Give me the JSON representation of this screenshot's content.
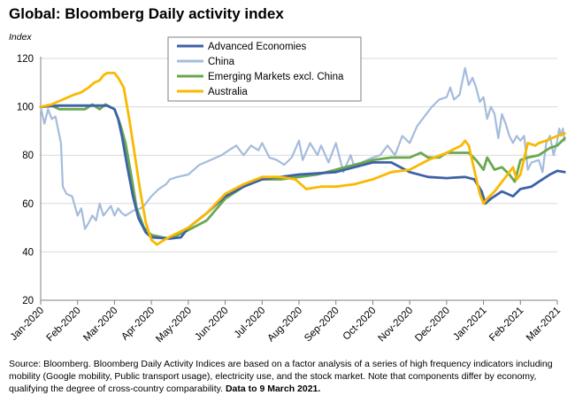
{
  "chart_data": {
    "type": "line",
    "title": "Global: Bloomberg Daily activity index",
    "ylabel": "Index",
    "xlabel": "",
    "ylim": [
      20,
      120
    ],
    "yticks": [
      20,
      40,
      60,
      80,
      100,
      120
    ],
    "grid": "horizontal",
    "legend_position": "top-center",
    "x_tick_labels": [
      "Jan-2020",
      "Feb-2020",
      "Mar-2020",
      "Apr-2020",
      "May-2020",
      "Jun-2020",
      "Jul-2020",
      "Aug-2020",
      "Sep-2020",
      "Oct-2020",
      "Nov-2020",
      "Dec-2020",
      "Jan-2021",
      "Feb-2021",
      "Mar-2021"
    ],
    "x_axis_note": "x values are months since Jan-2020 start (0 = Jan-2020, 14 = Mar-2021)",
    "series": [
      {
        "name": "Advanced Economies",
        "color": "#3c62a8",
        "width": 2.8,
        "points": [
          [
            0,
            100
          ],
          [
            0.5,
            100.5
          ],
          [
            1,
            100.5
          ],
          [
            1.5,
            100.5
          ],
          [
            1.8,
            100.5
          ],
          [
            2.0,
            99
          ],
          [
            2.1,
            95
          ],
          [
            2.2,
            88
          ],
          [
            2.35,
            75
          ],
          [
            2.5,
            63
          ],
          [
            2.65,
            54
          ],
          [
            2.85,
            48
          ],
          [
            3.0,
            46
          ],
          [
            3.5,
            45.5
          ],
          [
            3.8,
            46
          ],
          [
            4.0,
            50
          ],
          [
            4.5,
            56
          ],
          [
            5.0,
            63
          ],
          [
            5.5,
            67
          ],
          [
            6.0,
            70
          ],
          [
            6.5,
            71
          ],
          [
            7.0,
            72
          ],
          [
            7.5,
            72.5
          ],
          [
            8.0,
            73
          ],
          [
            8.5,
            75
          ],
          [
            9.0,
            77
          ],
          [
            9.5,
            77
          ],
          [
            10.0,
            73
          ],
          [
            10.5,
            71
          ],
          [
            11.0,
            70.5
          ],
          [
            11.5,
            71
          ],
          [
            11.75,
            70
          ],
          [
            11.95,
            65
          ],
          [
            12.05,
            60
          ],
          [
            12.2,
            62
          ],
          [
            12.5,
            65
          ],
          [
            12.8,
            63
          ],
          [
            13.0,
            66
          ],
          [
            13.3,
            67
          ],
          [
            13.5,
            69
          ],
          [
            13.8,
            72
          ],
          [
            14.0,
            73.5
          ],
          [
            14.2,
            73
          ]
        ]
      },
      {
        "name": "China",
        "color": "#a4bcdc",
        "width": 2.2,
        "points": [
          [
            0,
            100
          ],
          [
            0.1,
            93
          ],
          [
            0.2,
            99
          ],
          [
            0.3,
            95
          ],
          [
            0.4,
            96
          ],
          [
            0.55,
            85
          ],
          [
            0.6,
            67
          ],
          [
            0.7,
            64
          ],
          [
            0.85,
            63
          ],
          [
            1.0,
            55
          ],
          [
            1.1,
            58
          ],
          [
            1.2,
            49.5
          ],
          [
            1.3,
            52
          ],
          [
            1.4,
            55
          ],
          [
            1.5,
            53
          ],
          [
            1.6,
            60
          ],
          [
            1.7,
            55
          ],
          [
            1.8,
            57
          ],
          [
            1.9,
            59
          ],
          [
            2.0,
            55
          ],
          [
            2.1,
            58
          ],
          [
            2.2,
            56
          ],
          [
            2.3,
            55
          ],
          [
            2.5,
            57
          ],
          [
            2.7,
            58
          ],
          [
            2.8,
            59
          ],
          [
            3.0,
            63
          ],
          [
            3.2,
            66
          ],
          [
            3.4,
            68
          ],
          [
            3.5,
            70
          ],
          [
            3.7,
            71
          ],
          [
            4.0,
            72
          ],
          [
            4.3,
            76
          ],
          [
            4.6,
            78
          ],
          [
            4.9,
            80
          ],
          [
            5.1,
            82
          ],
          [
            5.3,
            84
          ],
          [
            5.5,
            80
          ],
          [
            5.7,
            84
          ],
          [
            5.9,
            82
          ],
          [
            6.0,
            85
          ],
          [
            6.2,
            79
          ],
          [
            6.4,
            78
          ],
          [
            6.6,
            76
          ],
          [
            6.8,
            79
          ],
          [
            7.0,
            86
          ],
          [
            7.1,
            78
          ],
          [
            7.3,
            85
          ],
          [
            7.5,
            80
          ],
          [
            7.6,
            84
          ],
          [
            7.8,
            77
          ],
          [
            8.0,
            85
          ],
          [
            8.2,
            73
          ],
          [
            8.4,
            80
          ],
          [
            8.5,
            75
          ],
          [
            8.7,
            77
          ],
          [
            9.0,
            79
          ],
          [
            9.2,
            80
          ],
          [
            9.4,
            84
          ],
          [
            9.6,
            80
          ],
          [
            9.8,
            88
          ],
          [
            10.0,
            85
          ],
          [
            10.2,
            92
          ],
          [
            10.4,
            96
          ],
          [
            10.6,
            100
          ],
          [
            10.8,
            103
          ],
          [
            11.0,
            104
          ],
          [
            11.1,
            108
          ],
          [
            11.2,
            103
          ],
          [
            11.35,
            105
          ],
          [
            11.5,
            116
          ],
          [
            11.6,
            109
          ],
          [
            11.7,
            112
          ],
          [
            11.8,
            108
          ],
          [
            11.9,
            102
          ],
          [
            12.0,
            104
          ],
          [
            12.1,
            95
          ],
          [
            12.2,
            100
          ],
          [
            12.3,
            97
          ],
          [
            12.4,
            87
          ],
          [
            12.5,
            97
          ],
          [
            12.6,
            93
          ],
          [
            12.7,
            88
          ],
          [
            12.8,
            85
          ],
          [
            12.9,
            88
          ],
          [
            13.0,
            86
          ],
          [
            13.1,
            88
          ],
          [
            13.2,
            74
          ],
          [
            13.3,
            77
          ],
          [
            13.5,
            78
          ],
          [
            13.6,
            73
          ],
          [
            13.7,
            85
          ],
          [
            13.8,
            88
          ],
          [
            13.9,
            80
          ],
          [
            14.0,
            86
          ],
          [
            14.05,
            91
          ],
          [
            14.1,
            88
          ],
          [
            14.15,
            91
          ],
          [
            14.2,
            86
          ]
        ]
      },
      {
        "name": "Emerging Markets excl. China",
        "color": "#6aa84f",
        "width": 2.8,
        "points": [
          [
            0,
            100
          ],
          [
            0.3,
            100.5
          ],
          [
            0.5,
            99
          ],
          [
            1.0,
            99
          ],
          [
            1.2,
            99
          ],
          [
            1.4,
            101
          ],
          [
            1.6,
            99
          ],
          [
            1.75,
            101
          ],
          [
            2.0,
            99
          ],
          [
            2.15,
            93
          ],
          [
            2.3,
            85
          ],
          [
            2.45,
            72
          ],
          [
            2.6,
            58
          ],
          [
            2.8,
            50
          ],
          [
            3.0,
            47
          ],
          [
            3.3,
            46
          ],
          [
            3.5,
            45.5
          ],
          [
            4.0,
            49
          ],
          [
            4.5,
            53
          ],
          [
            5.0,
            62
          ],
          [
            5.5,
            67
          ],
          [
            6.0,
            70
          ],
          [
            6.5,
            70
          ],
          [
            7.0,
            71
          ],
          [
            7.5,
            72
          ],
          [
            8.0,
            74
          ],
          [
            8.5,
            76
          ],
          [
            9.0,
            78
          ],
          [
            9.5,
            79
          ],
          [
            10.0,
            79
          ],
          [
            10.3,
            81
          ],
          [
            10.5,
            79
          ],
          [
            10.8,
            79
          ],
          [
            11.0,
            81
          ],
          [
            11.3,
            81
          ],
          [
            11.6,
            81
          ],
          [
            11.8,
            78
          ],
          [
            12.0,
            74
          ],
          [
            12.1,
            79
          ],
          [
            12.3,
            74
          ],
          [
            12.5,
            75
          ],
          [
            12.7,
            72
          ],
          [
            12.85,
            69
          ],
          [
            13.0,
            78
          ],
          [
            13.2,
            79
          ],
          [
            13.5,
            80
          ],
          [
            13.8,
            83
          ],
          [
            14.0,
            84
          ],
          [
            14.2,
            87
          ]
        ]
      },
      {
        "name": "Australia",
        "color": "#f9b900",
        "width": 2.8,
        "points": [
          [
            0,
            100
          ],
          [
            0.3,
            101
          ],
          [
            0.6,
            103
          ],
          [
            0.9,
            105
          ],
          [
            1.1,
            106
          ],
          [
            1.3,
            108
          ],
          [
            1.45,
            110
          ],
          [
            1.6,
            111
          ],
          [
            1.7,
            113
          ],
          [
            1.8,
            114
          ],
          [
            2.0,
            114
          ],
          [
            2.1,
            112
          ],
          [
            2.25,
            108
          ],
          [
            2.4,
            95
          ],
          [
            2.55,
            80
          ],
          [
            2.7,
            65
          ],
          [
            2.85,
            52
          ],
          [
            3.0,
            45
          ],
          [
            3.15,
            43
          ],
          [
            3.35,
            45
          ],
          [
            3.6,
            47
          ],
          [
            4.0,
            50
          ],
          [
            4.5,
            56
          ],
          [
            5.0,
            64
          ],
          [
            5.5,
            68
          ],
          [
            6.0,
            71
          ],
          [
            6.5,
            71
          ],
          [
            6.9,
            70
          ],
          [
            7.2,
            66
          ],
          [
            7.6,
            67
          ],
          [
            8.0,
            67
          ],
          [
            8.5,
            68
          ],
          [
            9.0,
            70
          ],
          [
            9.5,
            73
          ],
          [
            10.0,
            74
          ],
          [
            10.5,
            78
          ],
          [
            11.0,
            81
          ],
          [
            11.4,
            84
          ],
          [
            11.5,
            86
          ],
          [
            11.6,
            84
          ],
          [
            11.75,
            74
          ],
          [
            11.9,
            64
          ],
          [
            12.0,
            60
          ],
          [
            12.1,
            62
          ],
          [
            12.3,
            65
          ],
          [
            12.6,
            71
          ],
          [
            12.8,
            75
          ],
          [
            12.9,
            70
          ],
          [
            13.0,
            72
          ],
          [
            13.2,
            85
          ],
          [
            13.4,
            84
          ],
          [
            13.5,
            85
          ],
          [
            13.7,
            86
          ],
          [
            14.0,
            88
          ],
          [
            14.2,
            89
          ]
        ]
      }
    ]
  },
  "source_note": {
    "text": "Source: Bloomberg.  Bloomberg Daily Activity Indices are based on a factor analysis of a series of high frequency indicators including mobility (Google mobility, Public transport usage), electricity use, and the stock market.  Note that components differ by economy, qualifying the degree of cross-country comparability. ",
    "data_note": "Data to 9 March 2021."
  }
}
